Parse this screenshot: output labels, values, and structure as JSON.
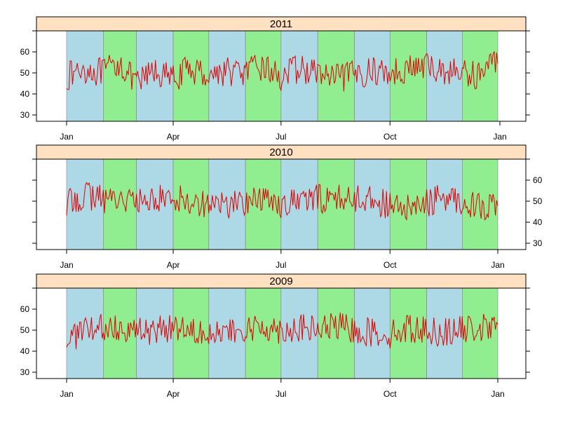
{
  "colors": {
    "strip": "#ffe0c0",
    "band_a": "#add8e6",
    "band_b": "#90ee90",
    "series": "#e00000",
    "frame": "#000000"
  },
  "chart_data": [
    {
      "type": "line",
      "title": "2011",
      "xlabel": "",
      "ylabel": "",
      "x_ticks": [
        "Jan",
        "Apr",
        "Jul",
        "Oct",
        "Jan"
      ],
      "y_ticks": [
        "30",
        "40",
        "50",
        "60"
      ],
      "y_axis_side": "left",
      "ylim": [
        27,
        70
      ],
      "x": [
        "2011-01-01",
        "2011-01-15",
        "2011-02-01",
        "2011-02-15",
        "2011-03-01",
        "2011-03-15",
        "2011-04-01",
        "2011-04-15",
        "2011-05-01",
        "2011-05-15",
        "2011-06-01",
        "2011-06-15",
        "2011-07-01",
        "2011-07-15",
        "2011-08-01",
        "2011-08-15",
        "2011-09-01",
        "2011-09-15",
        "2011-10-01",
        "2011-10-15",
        "2011-11-01",
        "2011-11-15",
        "2011-12-01",
        "2011-12-15",
        "2011-12-31"
      ],
      "values": [
        48,
        52,
        50,
        55,
        44,
        51,
        47,
        52,
        49,
        51,
        50,
        53,
        48,
        52,
        50,
        47,
        49,
        51,
        50,
        52,
        53,
        51,
        50,
        49,
        57
      ],
      "series_color": "#e00000",
      "background_bands": [
        "Jan",
        "Feb",
        "Mar",
        "Apr",
        "May",
        "Jun",
        "Jul",
        "Aug",
        "Sep",
        "Oct",
        "Nov",
        "Dec"
      ]
    },
    {
      "type": "line",
      "title": "2010",
      "xlabel": "",
      "ylabel": "",
      "x_ticks": [
        "Jan",
        "Apr",
        "Jul",
        "Oct",
        "Jan"
      ],
      "y_ticks": [
        "30",
        "40",
        "50",
        "60"
      ],
      "y_axis_side": "right",
      "ylim": [
        27,
        70
      ],
      "x": [
        "2010-01-01",
        "2010-01-15",
        "2010-02-01",
        "2010-02-15",
        "2010-03-01",
        "2010-03-15",
        "2010-04-01",
        "2010-04-15",
        "2010-05-01",
        "2010-05-15",
        "2010-06-01",
        "2010-06-15",
        "2010-07-01",
        "2010-07-15",
        "2010-08-01",
        "2010-08-15",
        "2010-09-01",
        "2010-09-15",
        "2010-10-01",
        "2010-10-15",
        "2010-11-01",
        "2010-11-15",
        "2010-12-01",
        "2010-12-15",
        "2010-12-31"
      ],
      "values": [
        48,
        53,
        51,
        52,
        49,
        51,
        52,
        50,
        49,
        48,
        50,
        51,
        49,
        50,
        51,
        52,
        51,
        52,
        47,
        46,
        49,
        52,
        50,
        48,
        47
      ],
      "series_color": "#e00000",
      "background_bands": [
        "Jan",
        "Feb",
        "Mar",
        "Apr",
        "May",
        "Jun",
        "Jul",
        "Aug",
        "Sep",
        "Oct",
        "Nov",
        "Dec"
      ]
    },
    {
      "type": "line",
      "title": "2009",
      "xlabel": "",
      "ylabel": "",
      "x_ticks": [
        "Jan",
        "Apr",
        "Jul",
        "Oct",
        "Jan"
      ],
      "y_ticks": [
        "30",
        "40",
        "50",
        "60"
      ],
      "y_axis_side": "left",
      "ylim": [
        27,
        70
      ],
      "x": [
        "2009-01-01",
        "2009-01-15",
        "2009-02-01",
        "2009-02-15",
        "2009-03-01",
        "2009-03-15",
        "2009-04-01",
        "2009-04-15",
        "2009-05-01",
        "2009-05-15",
        "2009-06-01",
        "2009-06-15",
        "2009-07-01",
        "2009-07-15",
        "2009-08-01",
        "2009-08-15",
        "2009-09-01",
        "2009-09-15",
        "2009-10-01",
        "2009-10-15",
        "2009-11-01",
        "2009-11-15",
        "2009-12-01",
        "2009-12-15",
        "2009-12-31"
      ],
      "values": [
        46,
        49,
        51,
        52,
        50,
        49,
        52,
        51,
        50,
        48,
        49,
        52,
        50,
        51,
        50,
        52,
        50,
        49,
        48,
        51,
        50,
        49,
        50,
        51,
        50
      ],
      "series_color": "#e00000",
      "background_bands": [
        "Jan",
        "Feb",
        "Mar",
        "Apr",
        "May",
        "Jun",
        "Jul",
        "Aug",
        "Sep",
        "Oct",
        "Nov",
        "Dec"
      ]
    }
  ]
}
